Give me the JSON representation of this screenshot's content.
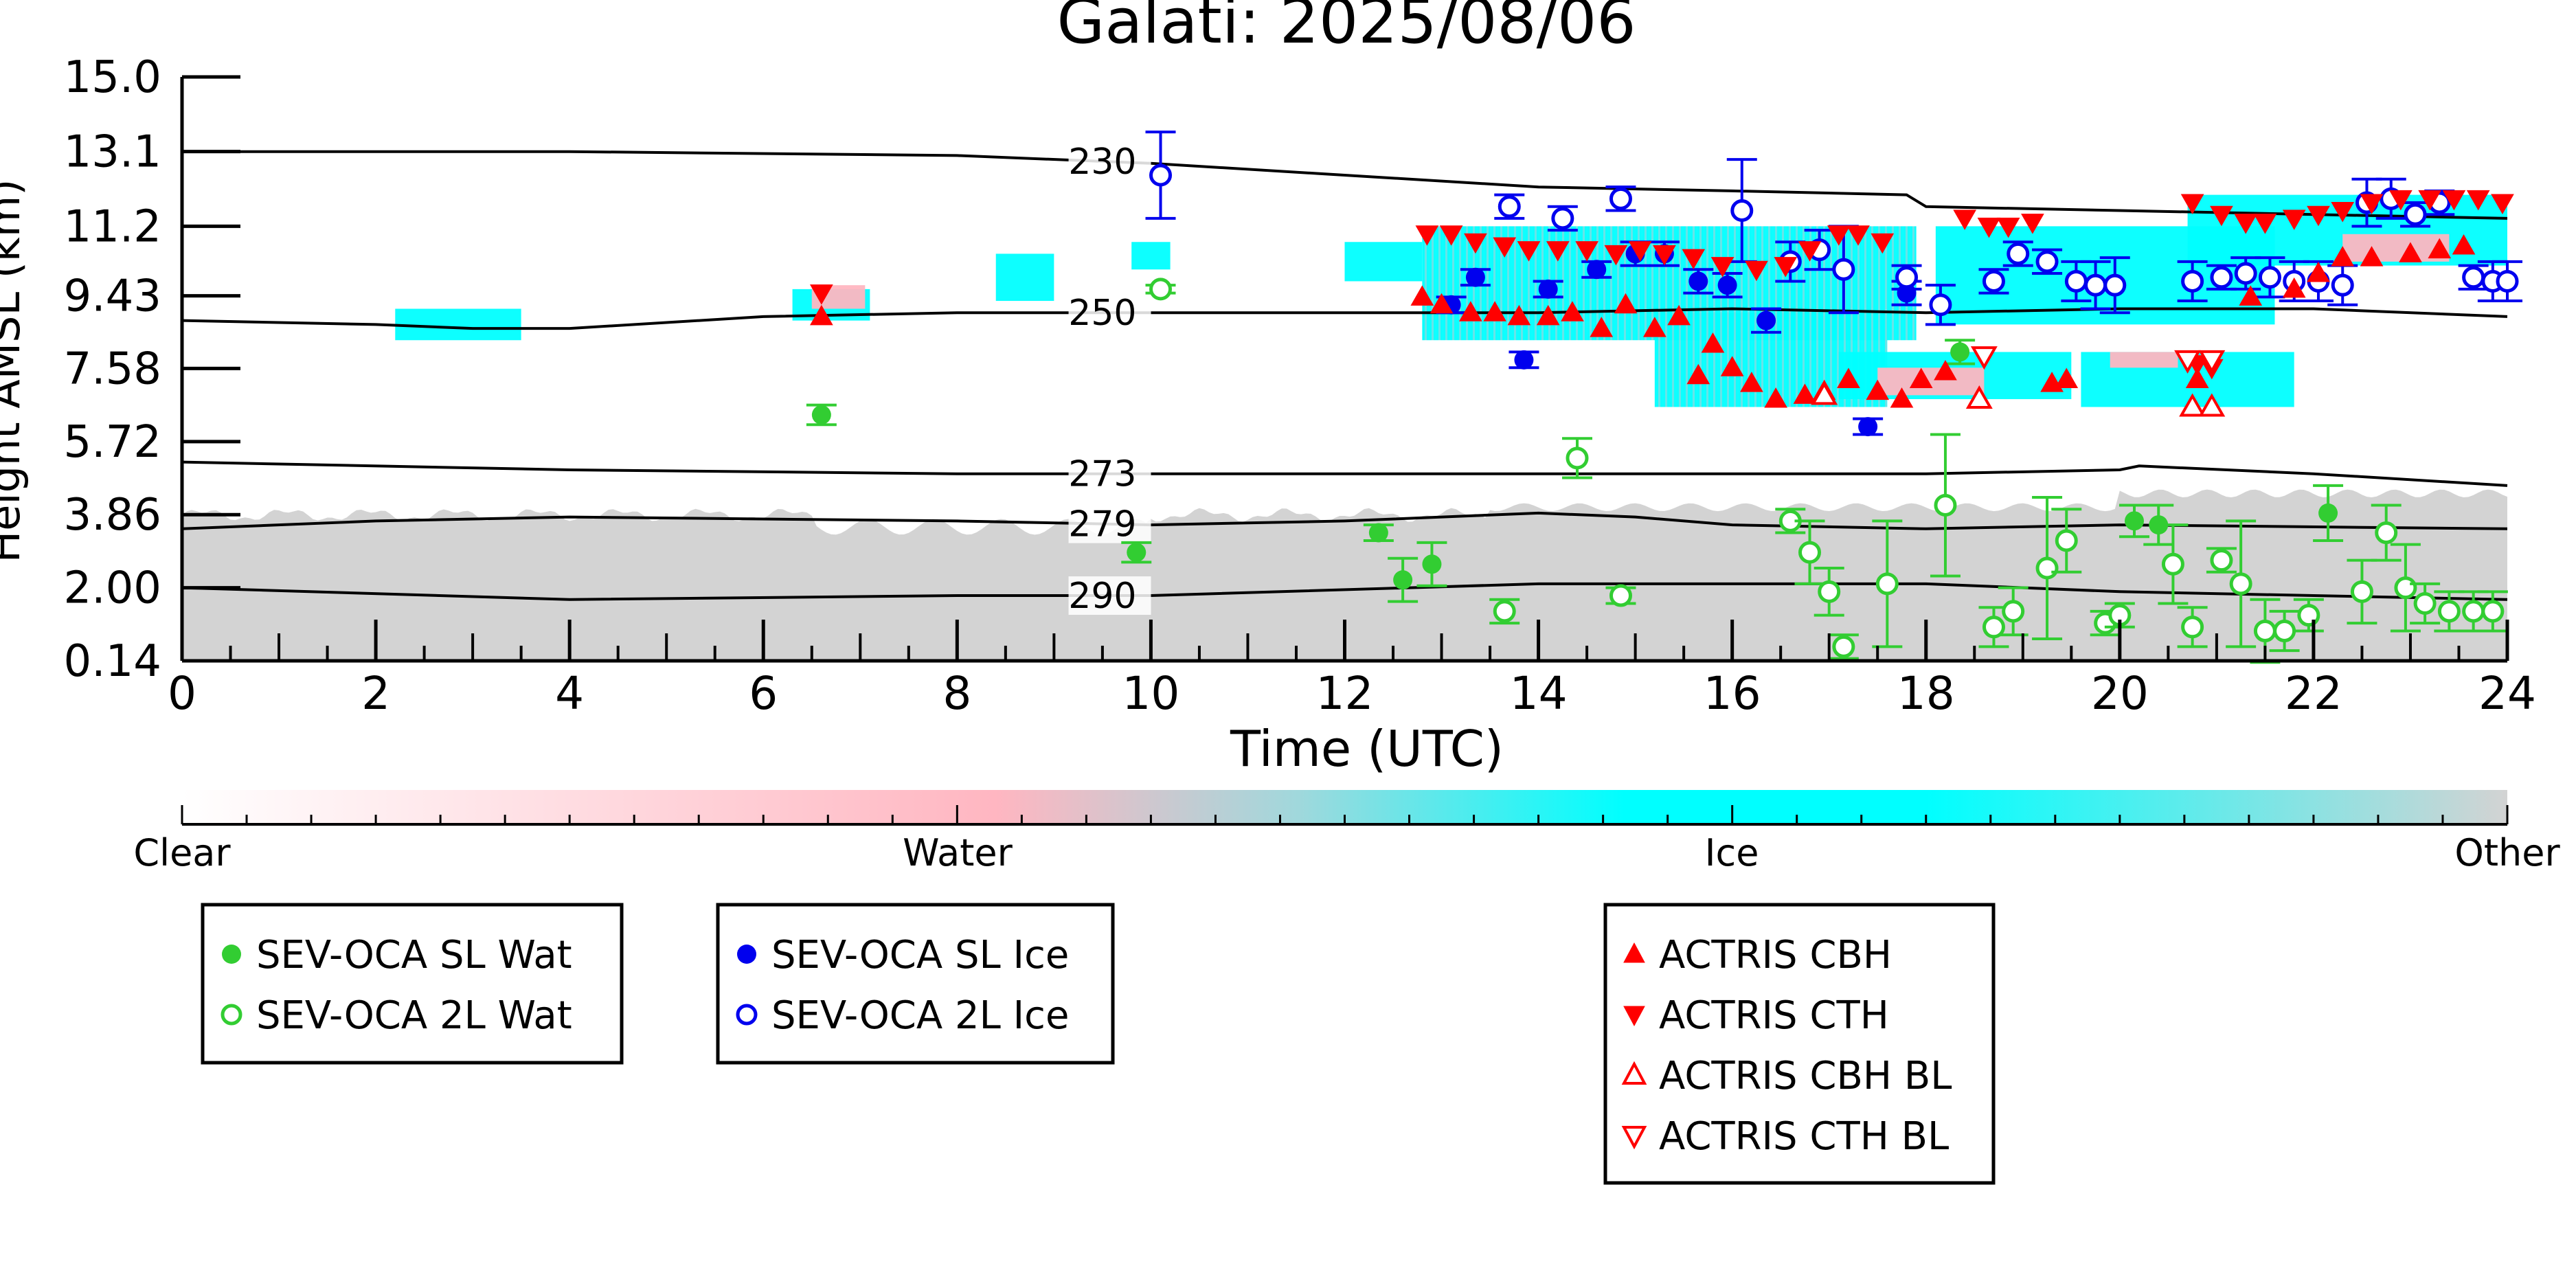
{
  "chart_data": {
    "type": "scatter",
    "title": "Galati: 2025/08/06",
    "xlabel": "Time (UTC)",
    "ylabel": "Height AMSL (km)",
    "xlim": [
      0,
      24
    ],
    "ylim": [
      0.14,
      15.0
    ],
    "x_ticks": [
      "0",
      "2",
      "4",
      "6",
      "8",
      "10",
      "12",
      "14",
      "16",
      "18",
      "20",
      "22",
      "24"
    ],
    "y_ticks": [
      "0.14",
      "2.00",
      "3.86",
      "5.72",
      "7.58",
      "9.43",
      "11.2",
      "13.1",
      "15.0"
    ],
    "colorbar": {
      "labels": [
        "Clear",
        "Water",
        "Ice",
        "Other"
      ],
      "colors": [
        "#ffffff",
        "#ffb6c1",
        "#00ffff",
        "#d3d3d3"
      ]
    },
    "isotherms": [
      {
        "label": "230",
        "points": [
          [
            0,
            13.1
          ],
          [
            4,
            13.1
          ],
          [
            8,
            13.0
          ],
          [
            10,
            12.8
          ],
          [
            12,
            12.5
          ],
          [
            14,
            12.2
          ],
          [
            16,
            12.1
          ],
          [
            17.8,
            12.0
          ],
          [
            18,
            11.7
          ],
          [
            20,
            11.6
          ],
          [
            22,
            11.5
          ],
          [
            24,
            11.4
          ]
        ]
      },
      {
        "label": "250",
        "points": [
          [
            0,
            8.8
          ],
          [
            2,
            8.7
          ],
          [
            3,
            8.6
          ],
          [
            4,
            8.6
          ],
          [
            6,
            8.9
          ],
          [
            8,
            9.0
          ],
          [
            10,
            9.0
          ],
          [
            12,
            9.0
          ],
          [
            14,
            9.0
          ],
          [
            16,
            9.1
          ],
          [
            18,
            9.0
          ],
          [
            20,
            9.1
          ],
          [
            22,
            9.1
          ],
          [
            24,
            8.9
          ]
        ]
      },
      {
        "label": "273",
        "points": [
          [
            0,
            5.2
          ],
          [
            4,
            5.0
          ],
          [
            8,
            4.9
          ],
          [
            10,
            4.9
          ],
          [
            14,
            4.9
          ],
          [
            16,
            4.9
          ],
          [
            18,
            4.9
          ],
          [
            20,
            5.0
          ],
          [
            20.2,
            5.1
          ],
          [
            22,
            4.9
          ],
          [
            24,
            4.6
          ]
        ]
      },
      {
        "label": "279",
        "points": [
          [
            0,
            3.5
          ],
          [
            2,
            3.7
          ],
          [
            4,
            3.8
          ],
          [
            8,
            3.7
          ],
          [
            10,
            3.6
          ],
          [
            12,
            3.7
          ],
          [
            14,
            3.9
          ],
          [
            15,
            3.8
          ],
          [
            16,
            3.6
          ],
          [
            18,
            3.5
          ],
          [
            20,
            3.6
          ],
          [
            24,
            3.5
          ]
        ]
      },
      {
        "label": "290",
        "points": [
          [
            0,
            2.0
          ],
          [
            4,
            1.7
          ],
          [
            8,
            1.8
          ],
          [
            10,
            1.8
          ],
          [
            14,
            2.1
          ],
          [
            18,
            2.1
          ],
          [
            20,
            1.9
          ],
          [
            22,
            1.8
          ],
          [
            24,
            1.7
          ]
        ]
      }
    ],
    "series": [
      {
        "name": "SEV-OCA SL Wat",
        "color": "#32cd32",
        "marker": "circle-filled",
        "points": [
          [
            6.6,
            6.4,
            0.25
          ],
          [
            9.85,
            2.9,
            0.25
          ],
          [
            12.35,
            3.4,
            0.2
          ],
          [
            12.6,
            2.2,
            0.55
          ],
          [
            12.9,
            2.6,
            0.55
          ],
          [
            18.35,
            8.0,
            0.3
          ],
          [
            20.15,
            3.7,
            0.4
          ],
          [
            20.4,
            3.6,
            0.5
          ],
          [
            22.15,
            3.9,
            0.7
          ]
        ]
      },
      {
        "name": "SEV-OCA 2L Wat",
        "color": "#32cd32",
        "marker": "circle-open",
        "points": [
          [
            10.1,
            9.6,
            0.1
          ],
          [
            13.65,
            1.4,
            0.3
          ],
          [
            14.4,
            5.3,
            0.5
          ],
          [
            14.85,
            1.8,
            0.2
          ],
          [
            16.6,
            3.7,
            0.3
          ],
          [
            16.8,
            2.9,
            0.8
          ],
          [
            17.0,
            1.9,
            0.6
          ],
          [
            17.15,
            0.5,
            0.3
          ],
          [
            17.6,
            2.1,
            1.6
          ],
          [
            18.2,
            4.1,
            1.8
          ],
          [
            18.7,
            1.0,
            0.5
          ],
          [
            18.9,
            1.4,
            0.6
          ],
          [
            19.25,
            2.5,
            1.8
          ],
          [
            19.45,
            3.2,
            0.8
          ],
          [
            19.85,
            1.1,
            0.3
          ],
          [
            20.0,
            1.3,
            0.3
          ],
          [
            20.55,
            2.6,
            1.0
          ],
          [
            20.75,
            1.0,
            0.5
          ],
          [
            21.05,
            2.7,
            0.3
          ],
          [
            21.25,
            2.1,
            1.6
          ],
          [
            21.5,
            0.9,
            0.8
          ],
          [
            21.7,
            0.9,
            0.5
          ],
          [
            21.95,
            1.3,
            0.4
          ],
          [
            22.5,
            1.9,
            0.8
          ],
          [
            22.75,
            3.4,
            0.7
          ],
          [
            22.95,
            2.0,
            1.1
          ],
          [
            23.15,
            1.6,
            0.5
          ],
          [
            23.4,
            1.4,
            0.5
          ],
          [
            23.65,
            1.4,
            0.5
          ],
          [
            23.85,
            1.4,
            0.5
          ]
        ]
      },
      {
        "name": "SEV-OCA SL Ice",
        "color": "#0000ee",
        "marker": "circle-filled",
        "points": [
          [
            13.1,
            9.2,
            0.2
          ],
          [
            13.35,
            9.9,
            0.2
          ],
          [
            13.85,
            7.8,
            0.2
          ],
          [
            14.1,
            9.6,
            0.2
          ],
          [
            14.6,
            10.1,
            0.2
          ],
          [
            15.0,
            10.5,
            0.3
          ],
          [
            15.3,
            10.5,
            0.3
          ],
          [
            15.65,
            9.8,
            0.3
          ],
          [
            15.95,
            9.7,
            0.3
          ],
          [
            16.35,
            8.8,
            0.3
          ],
          [
            17.4,
            6.1,
            0.2
          ],
          [
            17.8,
            9.5,
            0.3
          ]
        ]
      },
      {
        "name": "SEV-OCA 2L Ice",
        "color": "#0000ee",
        "marker": "circle-open",
        "points": [
          [
            10.1,
            12.5,
            1.1
          ],
          [
            13.7,
            11.7,
            0.3
          ],
          [
            14.25,
            11.4,
            0.3
          ],
          [
            14.85,
            11.9,
            0.3
          ],
          [
            16.1,
            11.6,
            1.3
          ],
          [
            16.6,
            10.3,
            0.5
          ],
          [
            16.9,
            10.6,
            0.5
          ],
          [
            17.15,
            10.1,
            1.1
          ],
          [
            17.8,
            9.9,
            0.3
          ],
          [
            18.15,
            9.2,
            0.5
          ],
          [
            18.7,
            9.8,
            0.3
          ],
          [
            18.95,
            10.5,
            0.3
          ],
          [
            19.25,
            10.3,
            0.3
          ],
          [
            19.55,
            9.8,
            0.5
          ],
          [
            19.75,
            9.7,
            0.6
          ],
          [
            19.95,
            9.7,
            0.7
          ],
          [
            20.75,
            9.8,
            0.5
          ],
          [
            21.05,
            9.9,
            0.3
          ],
          [
            21.3,
            10.0,
            0.4
          ],
          [
            21.55,
            9.9,
            0.5
          ],
          [
            21.8,
            9.8,
            0.5
          ],
          [
            22.05,
            9.8,
            0.5
          ],
          [
            22.3,
            9.7,
            0.5
          ],
          [
            22.55,
            11.8,
            0.6
          ],
          [
            22.8,
            11.9,
            0.5
          ],
          [
            23.05,
            11.5,
            0.3
          ],
          [
            23.3,
            11.8,
            0.3
          ],
          [
            23.65,
            9.9,
            0.3
          ],
          [
            23.85,
            9.8,
            0.5
          ],
          [
            24.05,
            9.8,
            0.5
          ]
        ]
      },
      {
        "name": "ACTRIS CBH",
        "color": "#ff0000",
        "marker": "triangle-up-filled",
        "points": [
          [
            6.6,
            8.9
          ],
          [
            12.8,
            9.4
          ],
          [
            13.0,
            9.2
          ],
          [
            13.3,
            9.0
          ],
          [
            13.55,
            9.0
          ],
          [
            13.8,
            8.9
          ],
          [
            14.1,
            8.9
          ],
          [
            14.35,
            9.0
          ],
          [
            14.65,
            8.6
          ],
          [
            14.9,
            9.2
          ],
          [
            15.2,
            8.6
          ],
          [
            15.45,
            8.9
          ],
          [
            15.65,
            7.4
          ],
          [
            15.8,
            8.2
          ],
          [
            16.0,
            7.6
          ],
          [
            16.2,
            7.2
          ],
          [
            16.45,
            6.8
          ],
          [
            16.75,
            6.9
          ],
          [
            16.95,
            7.0
          ],
          [
            17.2,
            7.3
          ],
          [
            17.5,
            7.0
          ],
          [
            17.75,
            6.8
          ],
          [
            17.95,
            7.3
          ],
          [
            18.2,
            7.5
          ],
          [
            19.3,
            7.2
          ],
          [
            19.45,
            7.3
          ],
          [
            20.8,
            7.3
          ],
          [
            21.35,
            9.4
          ],
          [
            21.8,
            9.6
          ],
          [
            22.05,
            10.0
          ],
          [
            22.3,
            10.4
          ],
          [
            22.6,
            10.4
          ],
          [
            23.0,
            10.5
          ],
          [
            23.3,
            10.6
          ],
          [
            23.55,
            10.7
          ]
        ]
      },
      {
        "name": "ACTRIS CTH",
        "color": "#ff0000",
        "marker": "triangle-down-filled",
        "points": [
          [
            6.6,
            9.5
          ],
          [
            12.85,
            11.0
          ],
          [
            13.1,
            11.0
          ],
          [
            13.35,
            10.8
          ],
          [
            13.65,
            10.7
          ],
          [
            13.9,
            10.6
          ],
          [
            14.2,
            10.6
          ],
          [
            14.5,
            10.6
          ],
          [
            14.8,
            10.5
          ],
          [
            15.05,
            10.6
          ],
          [
            15.3,
            10.5
          ],
          [
            15.6,
            10.4
          ],
          [
            15.9,
            10.2
          ],
          [
            16.25,
            10.1
          ],
          [
            16.55,
            10.2
          ],
          [
            16.8,
            10.6
          ],
          [
            17.1,
            11.0
          ],
          [
            17.3,
            11.0
          ],
          [
            17.55,
            10.8
          ],
          [
            18.4,
            11.4
          ],
          [
            18.65,
            11.2
          ],
          [
            18.85,
            11.2
          ],
          [
            19.1,
            11.3
          ],
          [
            20.8,
            7.7
          ],
          [
            20.95,
            7.6
          ],
          [
            20.75,
            11.8
          ],
          [
            21.05,
            11.5
          ],
          [
            21.3,
            11.3
          ],
          [
            21.5,
            11.3
          ],
          [
            21.8,
            11.4
          ],
          [
            22.05,
            11.5
          ],
          [
            22.3,
            11.6
          ],
          [
            22.6,
            11.8
          ],
          [
            22.9,
            11.9
          ],
          [
            23.2,
            11.9
          ],
          [
            23.45,
            11.9
          ],
          [
            23.7,
            11.9
          ],
          [
            23.95,
            11.8
          ]
        ]
      },
      {
        "name": "ACTRIS CBH BL",
        "color": "#ff0000",
        "marker": "triangle-up-open",
        "points": [
          [
            16.95,
            6.9
          ],
          [
            18.55,
            6.8
          ],
          [
            20.75,
            6.6
          ],
          [
            20.95,
            6.6
          ]
        ]
      },
      {
        "name": "ACTRIS CTH BL",
        "color": "#ff0000",
        "marker": "triangle-down-open",
        "points": [
          [
            18.6,
            7.9
          ],
          [
            20.7,
            7.8
          ],
          [
            20.95,
            7.8
          ]
        ]
      }
    ],
    "legend_placement": "below-plot",
    "legend_boxes": [
      [
        "SEV-OCA SL Wat",
        "SEV-OCA 2L Wat"
      ],
      [
        "SEV-OCA SL Ice",
        "SEV-OCA 2L Ice"
      ],
      [
        "ACTRIS CBH",
        "ACTRIS CTH",
        "ACTRIS CBH BL",
        "ACTRIS CTH BL"
      ]
    ]
  }
}
